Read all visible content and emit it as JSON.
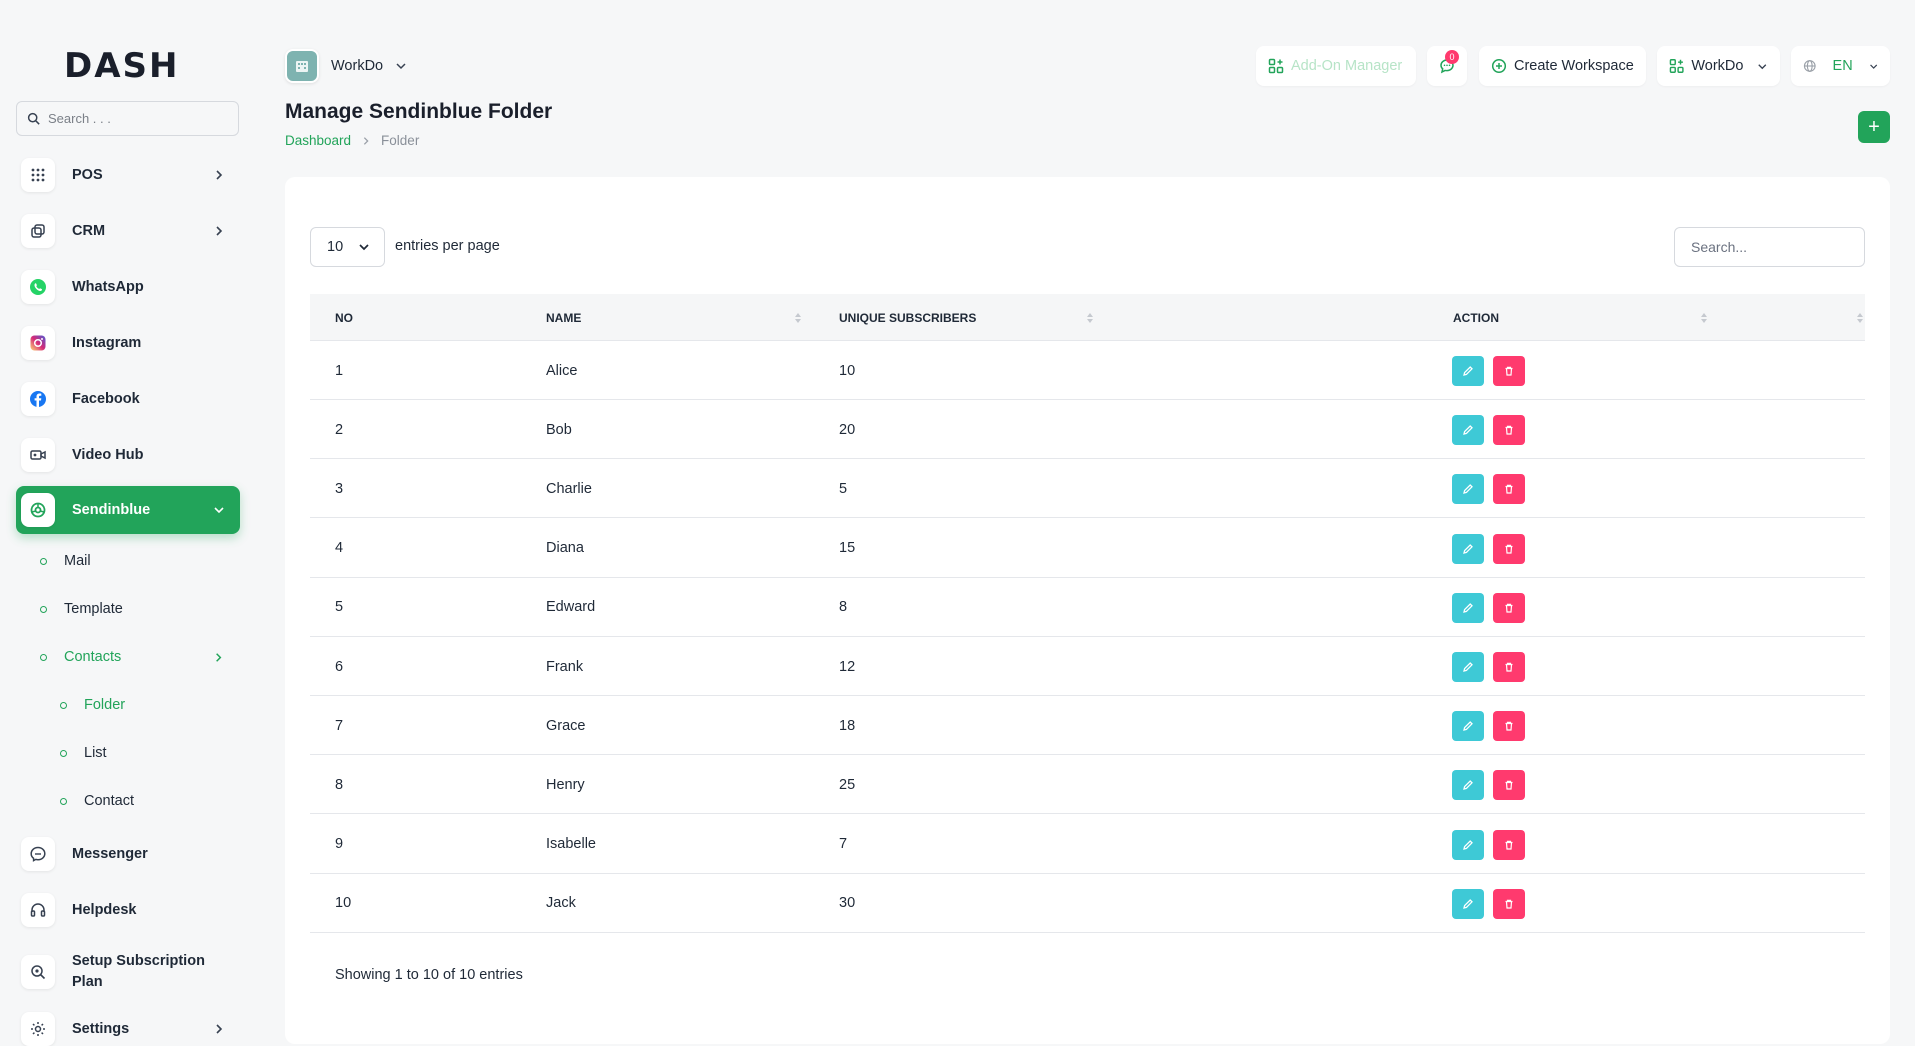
{
  "brand": {
    "logo_text": "DASH"
  },
  "sidebar": {
    "search_placeholder": "Search . . .",
    "items": [
      {
        "label": "POS",
        "icon": "grid-icon",
        "has_chevron": true
      },
      {
        "label": "CRM",
        "icon": "crm-icon",
        "has_chevron": true
      },
      {
        "label": "WhatsApp",
        "icon": "whatsapp-icon",
        "has_chevron": false
      },
      {
        "label": "Instagram",
        "icon": "instagram-icon",
        "has_chevron": false
      },
      {
        "label": "Facebook",
        "icon": "facebook-icon",
        "has_chevron": false
      },
      {
        "label": "Video Hub",
        "icon": "video-icon",
        "has_chevron": false
      },
      {
        "label": "Sendinblue",
        "icon": "sendinblue-icon",
        "has_chevron": true,
        "active": true
      }
    ],
    "sendinblue_sub": [
      {
        "label": "Mail"
      },
      {
        "label": "Template"
      },
      {
        "label": "Contacts"
      }
    ],
    "contacts_sub": [
      {
        "label": "Folder"
      },
      {
        "label": "List"
      },
      {
        "label": "Contact"
      }
    ],
    "bottom_items": [
      {
        "label": "Messenger",
        "icon": "messenger-icon"
      },
      {
        "label": "Helpdesk",
        "icon": "headset-icon"
      },
      {
        "label": "Setup Subscription Plan",
        "icon": "subscription-icon"
      },
      {
        "label": "Settings",
        "icon": "gear-icon"
      }
    ]
  },
  "header": {
    "workspace_name": "WorkDo",
    "addon_manager_label": "Add-On Manager",
    "notification_count": "0",
    "create_workspace_label": "Create Workspace",
    "workspace_switch_label": "WorkDo",
    "language_label": "EN"
  },
  "page": {
    "title": "Manage Sendinblue Folder",
    "breadcrumb": {
      "root": "Dashboard",
      "current": "Folder"
    },
    "add_button_label": "+"
  },
  "table": {
    "per_page_value": "10",
    "per_page_label": "entries per page",
    "search_placeholder": "Search...",
    "columns": [
      "NO",
      "NAME",
      "UNIQUE SUBSCRIBERS",
      "ACTION"
    ],
    "rows": [
      {
        "no": "1",
        "name": "Alice",
        "subscribers": "10"
      },
      {
        "no": "2",
        "name": "Bob",
        "subscribers": "20"
      },
      {
        "no": "3",
        "name": "Charlie",
        "subscribers": "5"
      },
      {
        "no": "4",
        "name": "Diana",
        "subscribers": "15"
      },
      {
        "no": "5",
        "name": "Edward",
        "subscribers": "8"
      },
      {
        "no": "6",
        "name": "Frank",
        "subscribers": "12"
      },
      {
        "no": "7",
        "name": "Grace",
        "subscribers": "18"
      },
      {
        "no": "8",
        "name": "Henry",
        "subscribers": "25"
      },
      {
        "no": "9",
        "name": "Isabelle",
        "subscribers": "7"
      },
      {
        "no": "10",
        "name": "Jack",
        "subscribers": "30"
      }
    ],
    "footer_text": "Showing 1 to 10 of 10 entries"
  },
  "colors": {
    "accent": "#22a45a",
    "edit": "#3ec9d6",
    "delete": "#ff3a6e"
  }
}
